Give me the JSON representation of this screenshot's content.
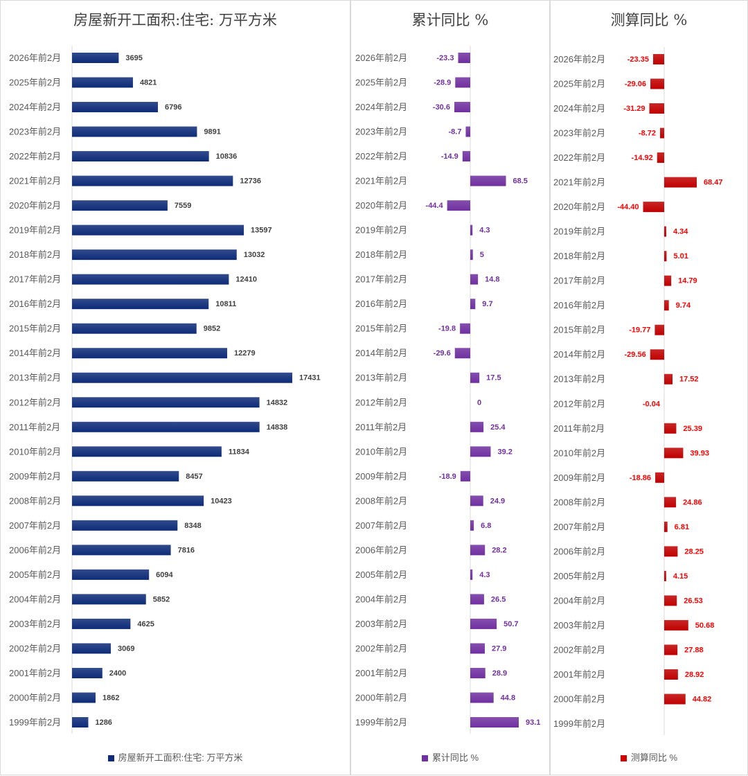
{
  "chart_data": [
    {
      "type": "bar",
      "orientation": "horizontal",
      "title": "房屋新开工面积:住宅: 万平方米",
      "legend": "房屋新开工面积:住宅: 万平方米",
      "legend_position": "bottom",
      "color": "#0d2b78",
      "label_color": "#404040",
      "categories": [
        "2026年前2月",
        "2025年前2月",
        "2024年前2月",
        "2023年前2月",
        "2022年前2月",
        "2021年前2月",
        "2020年前2月",
        "2019年前2月",
        "2018年前2月",
        "2017年前2月",
        "2016年前2月",
        "2015年前2月",
        "2014年前2月",
        "2013年前2月",
        "2012年前2月",
        "2011年前2月",
        "2010年前2月",
        "2009年前2月",
        "2008年前2月",
        "2007年前2月",
        "2006年前2月",
        "2005年前2月",
        "2004年前2月",
        "2003年前2月",
        "2002年前2月",
        "2001年前2月",
        "2000年前2月",
        "1999年前2月"
      ],
      "values": [
        3695,
        4821,
        6796,
        9891,
        10836,
        12736,
        7559,
        13597,
        13032,
        12410,
        10811,
        9852,
        12279,
        17431,
        14832,
        14838,
        11834,
        8457,
        10423,
        8348,
        7816,
        6094,
        5852,
        4625,
        3069,
        2400,
        1862,
        1286
      ],
      "labels": [
        "3695",
        "4821",
        "6796",
        "9891",
        "10836",
        "12736",
        "7559",
        "13597",
        "13032",
        "12410",
        "10811",
        "9852",
        "12279",
        "17431",
        "14832",
        "14838",
        "11834",
        "8457",
        "10423",
        "8348",
        "7816",
        "6094",
        "5852",
        "4625",
        "3069",
        "2400",
        "1862",
        "1286"
      ]
    },
    {
      "type": "bar",
      "orientation": "horizontal",
      "title": "累计同比 %",
      "legend": "累计同比 %",
      "legend_position": "bottom",
      "color": "#7030a0",
      "label_color": "#7030a0",
      "categories": [
        "2026年前2月",
        "2025年前2月",
        "2024年前2月",
        "2023年前2月",
        "2022年前2月",
        "2021年前2月",
        "2020年前2月",
        "2019年前2月",
        "2018年前2月",
        "2017年前2月",
        "2016年前2月",
        "2015年前2月",
        "2014年前2月",
        "2013年前2月",
        "2012年前2月",
        "2011年前2月",
        "2010年前2月",
        "2009年前2月",
        "2008年前2月",
        "2007年前2月",
        "2006年前2月",
        "2005年前2月",
        "2004年前2月",
        "2003年前2月",
        "2002年前2月",
        "2001年前2月",
        "2000年前2月",
        "1999年前2月"
      ],
      "values": [
        -23.3,
        -28.9,
        -30.6,
        -8.7,
        -14.9,
        68.5,
        -44.4,
        4.3,
        5,
        14.8,
        9.7,
        -19.8,
        -29.6,
        17.5,
        0,
        25.4,
        39.2,
        -18.9,
        24.9,
        6.8,
        28.2,
        4.3,
        26.5,
        50.7,
        27.9,
        28.9,
        44.8,
        93.1
      ],
      "labels": [
        "-23.3",
        "-28.9",
        "-30.6",
        "-8.7",
        "-14.9",
        "68.5",
        "-44.4",
        "4.3",
        "5",
        "14.8",
        "9.7",
        "-19.8",
        "-29.6",
        "17.5",
        "0",
        "25.4",
        "39.2",
        "-18.9",
        "24.9",
        "6.8",
        "28.2",
        "4.3",
        "26.5",
        "50.7",
        "27.9",
        "28.9",
        "44.8",
        "93.1"
      ]
    },
    {
      "type": "bar",
      "orientation": "horizontal",
      "title": "测算同比 %",
      "legend": "测算同比 %",
      "legend_position": "bottom",
      "color": "#c00000",
      "label_color": "#ff0000",
      "categories": [
        "2026年前2月",
        "2025年前2月",
        "2024年前2月",
        "2023年前2月",
        "2022年前2月",
        "2021年前2月",
        "2020年前2月",
        "2019年前2月",
        "2018年前2月",
        "2017年前2月",
        "2016年前2月",
        "2015年前2月",
        "2014年前2月",
        "2013年前2月",
        "2012年前2月",
        "2011年前2月",
        "2010年前2月",
        "2009年前2月",
        "2008年前2月",
        "2007年前2月",
        "2006年前2月",
        "2005年前2月",
        "2004年前2月",
        "2003年前2月",
        "2002年前2月",
        "2001年前2月",
        "2000年前2月",
        "1999年前2月"
      ],
      "values": [
        -23.35,
        -29.06,
        -31.29,
        -8.72,
        -14.92,
        68.47,
        -44.4,
        4.34,
        5.01,
        14.79,
        9.74,
        -19.77,
        -29.56,
        17.52,
        -0.04,
        25.39,
        39.93,
        -18.86,
        24.86,
        6.81,
        28.25,
        4.15,
        26.53,
        50.68,
        27.88,
        28.92,
        44.82,
        null
      ],
      "labels": [
        "-23.35",
        "-29.06",
        "-31.29",
        "-8.72",
        "-14.92",
        "68.47",
        "-44.40",
        "4.34",
        "5.01",
        "14.79",
        "9.74",
        "-19.77",
        "-29.56",
        "17.52",
        "-0.04",
        "25.39",
        "39.93",
        "-18.86",
        "24.86",
        "6.81",
        "28.25",
        "4.15",
        "26.53",
        "50.68",
        "27.88",
        "28.92",
        "44.82",
        ""
      ]
    }
  ]
}
